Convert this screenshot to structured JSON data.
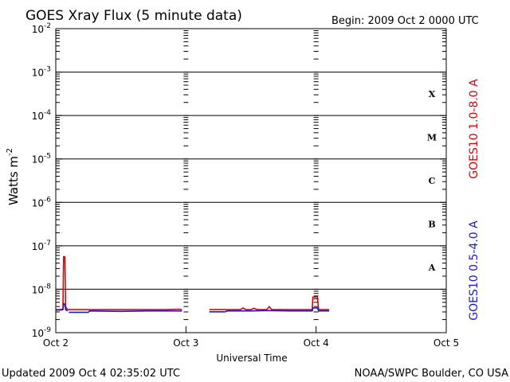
{
  "chart_data": {
    "type": "line",
    "title": "GOES Xray Flux (5 minute data)",
    "begin_label": "Begin:  2009 Oct 2 0000 UTC",
    "xlabel": "Universal Time",
    "ylabel": "Watts m",
    "ylabel_sup": "-2",
    "xlim": [
      0,
      3
    ],
    "x_ticks": [
      {
        "x": 0,
        "label": "Oct 2"
      },
      {
        "x": 1,
        "label": "Oct 3"
      },
      {
        "x": 2,
        "label": "Oct 4"
      },
      {
        "x": 3,
        "label": "Oct 5"
      }
    ],
    "y_scale": "log",
    "ylim_exp": [
      -9,
      -2
    ],
    "y_ticks": [
      {
        "exp": -2,
        "label": "10",
        "sup": "-2"
      },
      {
        "exp": -3,
        "label": "10",
        "sup": "-3"
      },
      {
        "exp": -4,
        "label": "10",
        "sup": "-4"
      },
      {
        "exp": -5,
        "label": "10",
        "sup": "-5"
      },
      {
        "exp": -6,
        "label": "10",
        "sup": "-6"
      },
      {
        "exp": -7,
        "label": "10",
        "sup": "-7"
      },
      {
        "exp": -8,
        "label": "10",
        "sup": "-8"
      },
      {
        "exp": -9,
        "label": "10",
        "sup": "-9"
      }
    ],
    "flare_classes": [
      {
        "label": "X",
        "exp_mid": -3.5
      },
      {
        "label": "M",
        "exp_mid": -4.5
      },
      {
        "label": "C",
        "exp_mid": -5.5
      },
      {
        "label": "B",
        "exp_mid": -6.5
      },
      {
        "label": "A",
        "exp_mid": -7.5
      }
    ],
    "series": [
      {
        "name": "GOES10 1.0-8.0 A",
        "color": "#dd0000",
        "segments": [
          [
            [
              0.0,
              -8.47
            ],
            [
              0.02,
              -8.47
            ],
            [
              0.04,
              -8.47
            ],
            [
              0.055,
              -8.45
            ],
            [
              0.06,
              -7.25
            ],
            [
              0.07,
              -7.25
            ],
            [
              0.075,
              -8.4
            ],
            [
              0.09,
              -8.47
            ],
            [
              0.15,
              -8.47
            ],
            [
              0.3,
              -8.47
            ],
            [
              0.5,
              -8.47
            ],
            [
              0.7,
              -8.47
            ],
            [
              0.85,
              -8.47
            ],
            [
              0.95,
              -8.46
            ],
            [
              0.97,
              -8.47
            ]
          ],
          [
            [
              1.18,
              -8.47
            ],
            [
              1.3,
              -8.47
            ],
            [
              1.42,
              -8.47
            ],
            [
              1.44,
              -8.43
            ],
            [
              1.46,
              -8.47
            ],
            [
              1.5,
              -8.47
            ],
            [
              1.52,
              -8.44
            ],
            [
              1.55,
              -8.47
            ],
            [
              1.62,
              -8.47
            ],
            [
              1.64,
              -8.4
            ],
            [
              1.66,
              -8.47
            ],
            [
              1.8,
              -8.47
            ],
            [
              1.95,
              -8.47
            ],
            [
              1.97,
              -8.47
            ],
            [
              1.975,
              -8.18
            ],
            [
              2.01,
              -8.18
            ],
            [
              2.02,
              -8.47
            ],
            [
              2.1,
              -8.47
            ]
          ]
        ]
      },
      {
        "name": "GOES10 0.5-4.0 A",
        "color": "#1a1acc",
        "segments": [
          [
            [
              0.0,
              -8.48
            ],
            [
              0.04,
              -8.48
            ],
            [
              0.055,
              -8.47
            ],
            [
              0.06,
              -8.33
            ],
            [
              0.07,
              -8.35
            ],
            [
              0.075,
              -8.47
            ],
            [
              0.09,
              -8.5
            ]
          ],
          [
            [
              0.1,
              -8.53
            ],
            [
              0.25,
              -8.53
            ],
            [
              0.26,
              -8.5
            ],
            [
              0.5,
              -8.51
            ],
            [
              0.7,
              -8.5
            ],
            [
              0.97,
              -8.5
            ]
          ],
          [
            [
              1.18,
              -8.52
            ],
            [
              1.3,
              -8.52
            ],
            [
              1.32,
              -8.5
            ],
            [
              1.5,
              -8.5
            ],
            [
              1.62,
              -8.49
            ],
            [
              1.8,
              -8.5
            ],
            [
              1.97,
              -8.5
            ],
            [
              1.975,
              -8.43
            ],
            [
              2.01,
              -8.43
            ],
            [
              2.02,
              -8.5
            ],
            [
              2.1,
              -8.5
            ]
          ]
        ]
      }
    ],
    "grid": true,
    "legend_position": "right"
  },
  "footer": {
    "updated": "Updated 2009 Oct  4 02:35:02 UTC",
    "source": "NOAA/SWPC Boulder, CO USA"
  }
}
